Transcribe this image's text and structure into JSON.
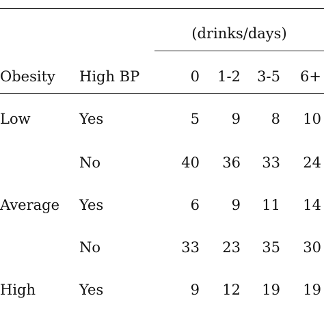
{
  "table": {
    "spanner_label": "(drinks/days)",
    "headers": [
      "Obesity",
      "High BP",
      "0",
      "1-2",
      "3-5",
      "6+"
    ],
    "rows": [
      {
        "obesity": "Low",
        "high_bp": "Yes",
        "values": [
          "5",
          "9",
          "8",
          "10"
        ]
      },
      {
        "obesity": "",
        "high_bp": "No",
        "values": [
          "40",
          "36",
          "33",
          "24"
        ]
      },
      {
        "obesity": "Average",
        "high_bp": "Yes",
        "values": [
          "6",
          "9",
          "11",
          "14"
        ]
      },
      {
        "obesity": "",
        "high_bp": "No",
        "values": [
          "33",
          "23",
          "35",
          "30"
        ]
      },
      {
        "obesity": "High",
        "high_bp": "Yes",
        "values": [
          "9",
          "12",
          "19",
          "19"
        ]
      }
    ]
  }
}
